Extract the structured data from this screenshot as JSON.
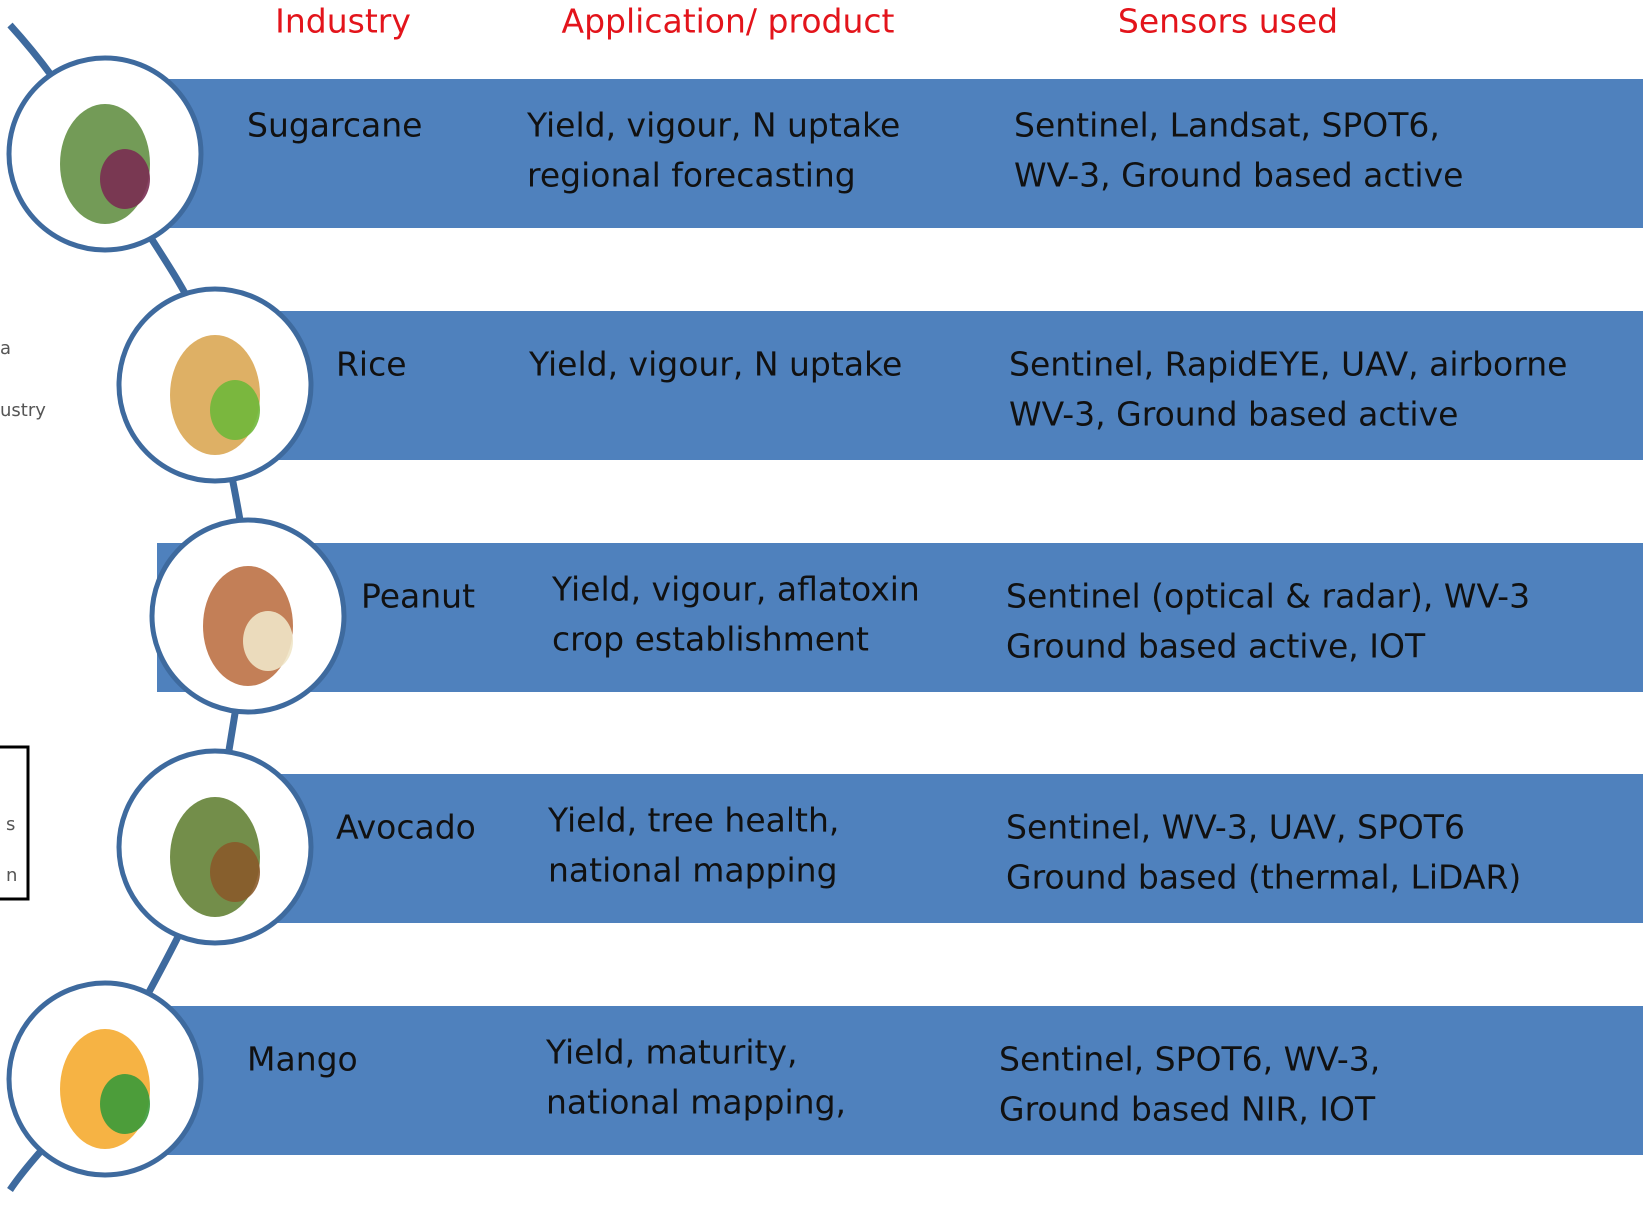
{
  "headers": {
    "industry": "Industry",
    "application": "Application/ product",
    "sensors": "Sensors used"
  },
  "rows": [
    {
      "industry": "Sugarcane",
      "application": [
        "Yield, vigour, N uptake",
        "regional forecasting"
      ],
      "sensors": [
        "Sentinel, Landsat, SPOT6,",
        "WV-3, Ground based active"
      ]
    },
    {
      "industry": "Rice",
      "application": [
        "Yield, vigour, N uptake"
      ],
      "sensors": [
        "Sentinel, RapidEYE, UAV, airborne",
        "WV-3, Ground based active"
      ]
    },
    {
      "industry": "Peanut",
      "application": [
        "Yield, vigour, aflatoxin",
        "crop establishment"
      ],
      "sensors": [
        "Sentinel (optical & radar), WV-3",
        "Ground based active, IOT"
      ]
    },
    {
      "industry": "Avocado",
      "application": [
        "Yield, tree health,",
        "national mapping"
      ],
      "sensors": [
        "Sentinel, WV-3, UAV, SPOT6",
        "Ground based (thermal, LiDAR)"
      ]
    },
    {
      "industry": "Mango",
      "application": [
        "Yield, maturity,",
        "national mapping,"
      ],
      "sensors": [
        "Sentinel, SPOT6, WV-3,",
        "Ground based NIR, IOT"
      ]
    }
  ],
  "fragments": [
    "a",
    "ustry",
    "s",
    "n"
  ]
}
